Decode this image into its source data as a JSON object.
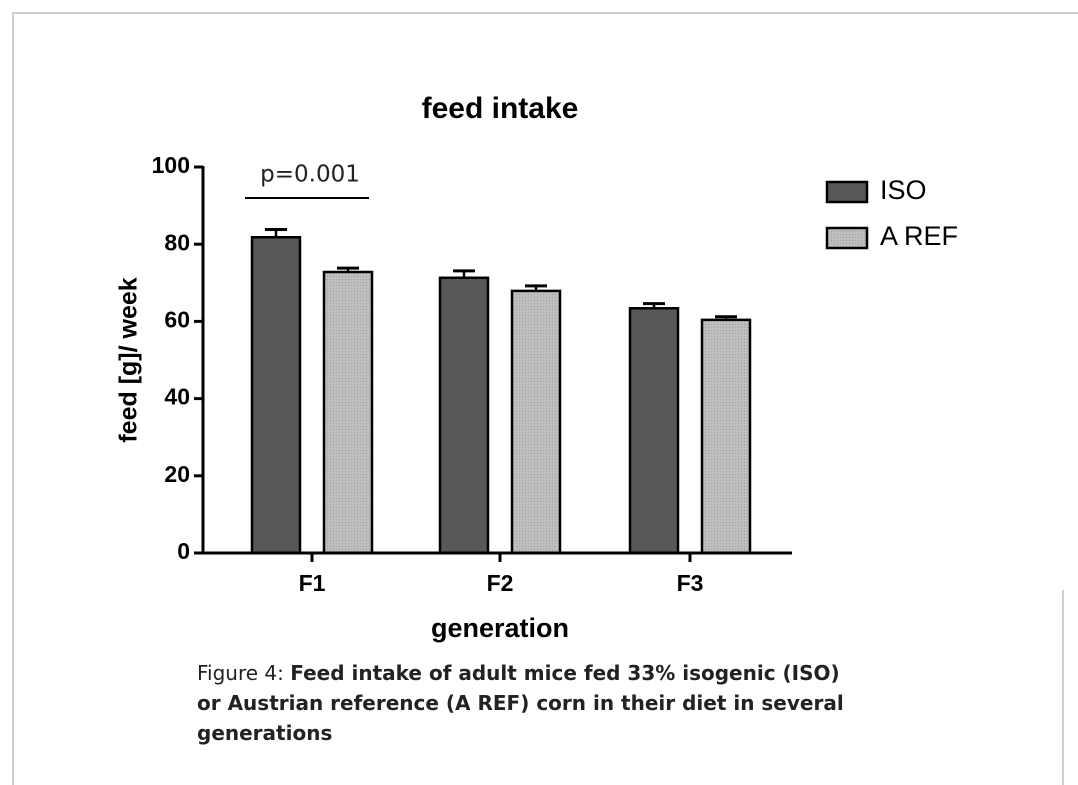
{
  "chart_data": {
    "type": "bar",
    "title": "feed intake",
    "ylabel": "feed [g]/ week",
    "xlabel": "generation",
    "categories": [
      "F1",
      "F2",
      "F3"
    ],
    "series": [
      {
        "name": "ISO",
        "color": "#575757",
        "values": [
          81.8,
          71.3,
          63.4
        ],
        "errors": [
          2.0,
          1.8,
          1.2
        ]
      },
      {
        "name": "A REF",
        "color": "#bebebe",
        "values": [
          72.8,
          67.9,
          60.4
        ],
        "errors": [
          1.0,
          1.3,
          0.8
        ]
      }
    ],
    "ylim": [
      0,
      100
    ],
    "yticks": [
      0,
      20,
      40,
      60,
      80,
      100
    ],
    "legend": "right",
    "annotation": "p=0.001"
  },
  "caption": {
    "label": "Figure 4:",
    "text": "Feed intake of adult mice fed 33% isogenic (ISO) or Austrian reference (A REF) corn in their diet in several generations"
  }
}
